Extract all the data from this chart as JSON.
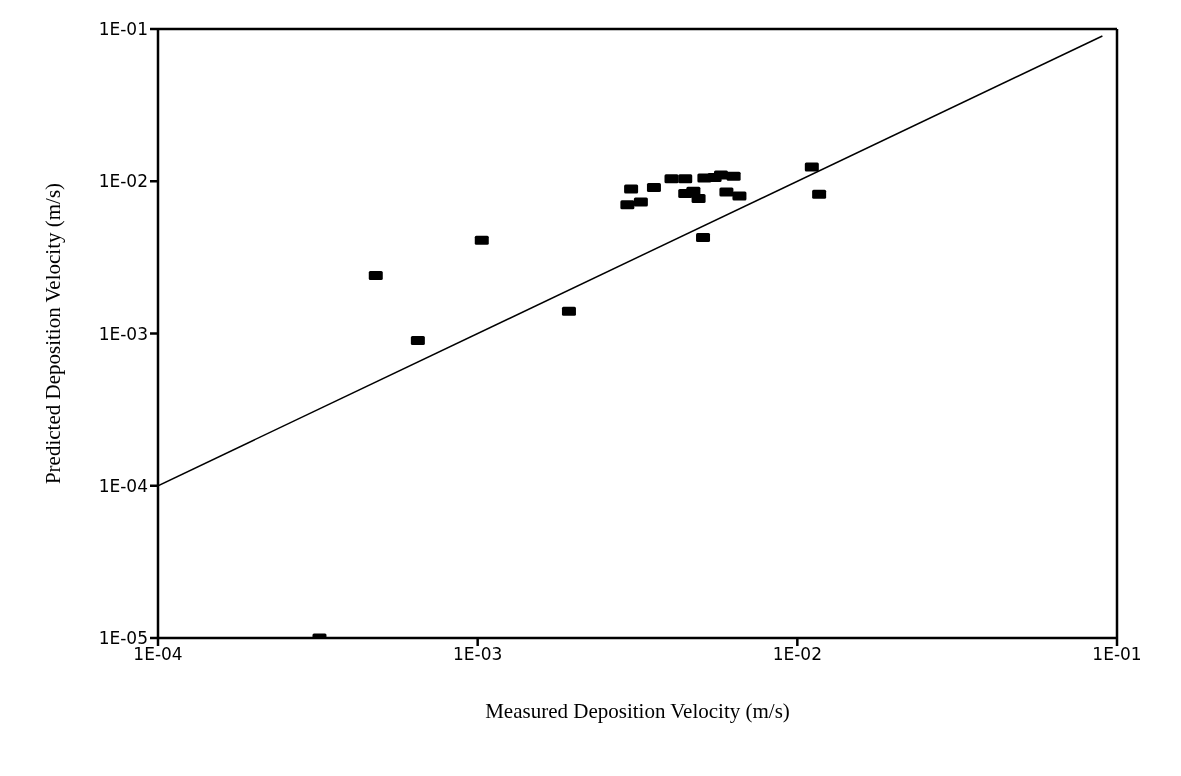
{
  "chart_data": {
    "type": "scatter",
    "xlabel": "Measured Deposition Velocity (m/s)",
    "ylabel": "Predicted Deposition Velocity (m/s)",
    "log": "xy",
    "marker": "square",
    "line_style": "solid",
    "xlim": [
      0.0001,
      0.1
    ],
    "ylim": [
      1e-05,
      0.1
    ],
    "xticks": [
      {
        "value": 0.0001,
        "label": "1E-04"
      },
      {
        "value": 0.001,
        "label": "1E-03"
      },
      {
        "value": 0.01,
        "label": "1E-02"
      },
      {
        "value": 0.1,
        "label": "1E-01"
      }
    ],
    "yticks": [
      {
        "value": 1e-05,
        "label": "1E-05"
      },
      {
        "value": 0.0001,
        "label": "1E-04"
      },
      {
        "value": 0.001,
        "label": "1E-03"
      },
      {
        "value": 0.01,
        "label": "1E-02"
      },
      {
        "value": 0.1,
        "label": "1E-01"
      }
    ],
    "series": [
      {
        "color": "#000000",
        "x": [
          0.00032,
          0.00048,
          0.00065,
          0.00103,
          0.00193,
          0.00294,
          0.00302,
          0.00324,
          0.00356,
          0.00404,
          0.00446,
          0.00446,
          0.00473,
          0.00491,
          0.00512,
          0.00551,
          0.00577,
          0.00632,
          0.00507,
          0.006,
          0.00659,
          0.0111,
          0.0117
        ],
        "values": [
          1e-05,
          0.0024,
          0.0009,
          0.0041,
          0.0014,
          0.007,
          0.0089,
          0.0073,
          0.0091,
          0.0104,
          0.0104,
          0.0083,
          0.0086,
          0.0077,
          0.0105,
          0.0106,
          0.011,
          0.0108,
          0.00427,
          0.0085,
          0.008,
          0.0124,
          0.0082
        ]
      },
      {
        "type": "line",
        "color": "#000000",
        "marker": "none",
        "x": [
          0.0001,
          0.09
        ],
        "values": [
          0.0001,
          0.09
        ]
      }
    ]
  }
}
